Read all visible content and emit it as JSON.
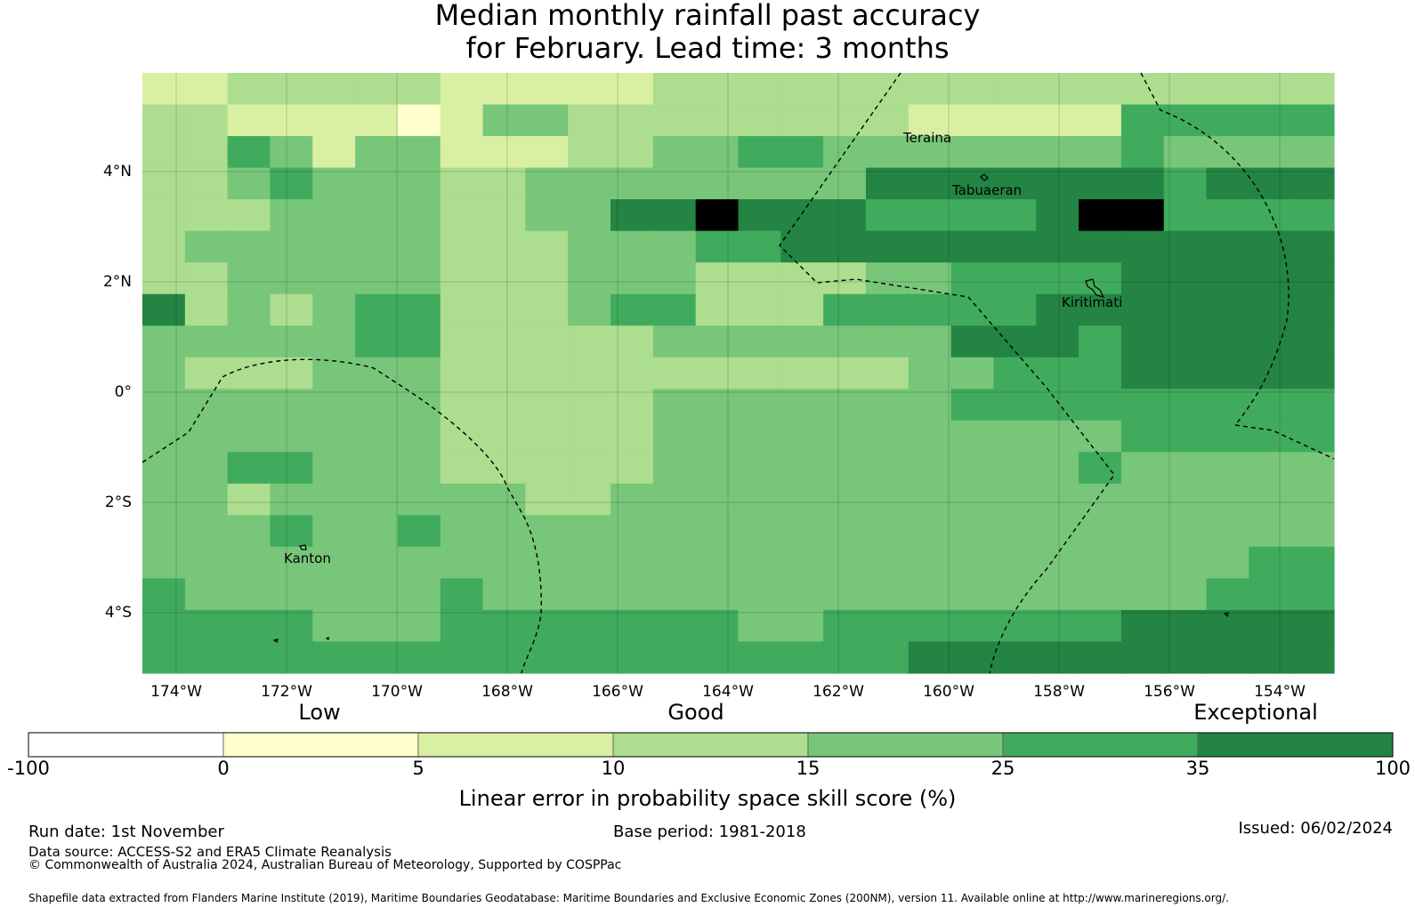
{
  "title_line1": "Median monthly rainfall past accuracy",
  "title_line2": "for February. Lead time: 3 months",
  "map": {
    "x_ticks": [
      "174°W",
      "172°W",
      "170°W",
      "168°W",
      "166°W",
      "164°W",
      "162°W",
      "160°W",
      "158°W",
      "156°W",
      "154°W"
    ],
    "y_ticks": [
      "4°N",
      "2°N",
      "0°",
      "2°S",
      "4°S"
    ],
    "places": [
      "Teraina",
      "Tabuaeran",
      "Kiritimati",
      "Kanton"
    ],
    "cell_classes": [
      "2233333222223333333333333333",
      "3322221244333333332222255555",
      "3354244222334455444444454444",
      "3345444334444444466666665666",
      "3334444334466766655556775555",
      "3444444333444556666666666666",
      "3344444333444333344555566666",
      "6343455333455333555556666666",
      "4444455333334444444666566666",
      "4333444333333333334455566666",
      "4444444333334444444555555555",
      "4444444333334444444444455555",
      "4455444333334444444444544444",
      "4434444443344444444444444444",
      "4445445444444444444444444444",
      "4444444444444444444444444455",
      "5444444544444444444444444555",
      "5555444555555544555555566666",
      "5555555555555555556666666666"
    ]
  },
  "colorbar": {
    "categories": [
      "Low",
      "Good",
      "Exceptional"
    ],
    "ticks": [
      "-100",
      "0",
      "5",
      "10",
      "15",
      "25",
      "35",
      "100"
    ],
    "colors": [
      "#ffffff",
      "#ffffcc",
      "#d9f0a3",
      "#addd8e",
      "#78c679",
      "#41ab5d",
      "#238443"
    ],
    "label": "Linear error in probability space skill score (%)"
  },
  "footer": {
    "run_date": "Run date: 1st November",
    "base_period": "Base period: 1981-2018",
    "issued": "Issued: 06/02/2024",
    "data_source": "Data source: ACCESS-S2 and ERA5 Climate Reanalysis",
    "copyright": "© Commonwealth of Australia 2024, Australian Bureau of Meteorology, Supported by COSPPac",
    "shapefile": "Shapefile data extracted from Flanders Marine Institute (2019), Maritime Boundaries Geodatabase: Maritime Boundaries and Exclusive Economic Zones (200NM), version 11. Available online at http://www.marineregions.org/."
  }
}
